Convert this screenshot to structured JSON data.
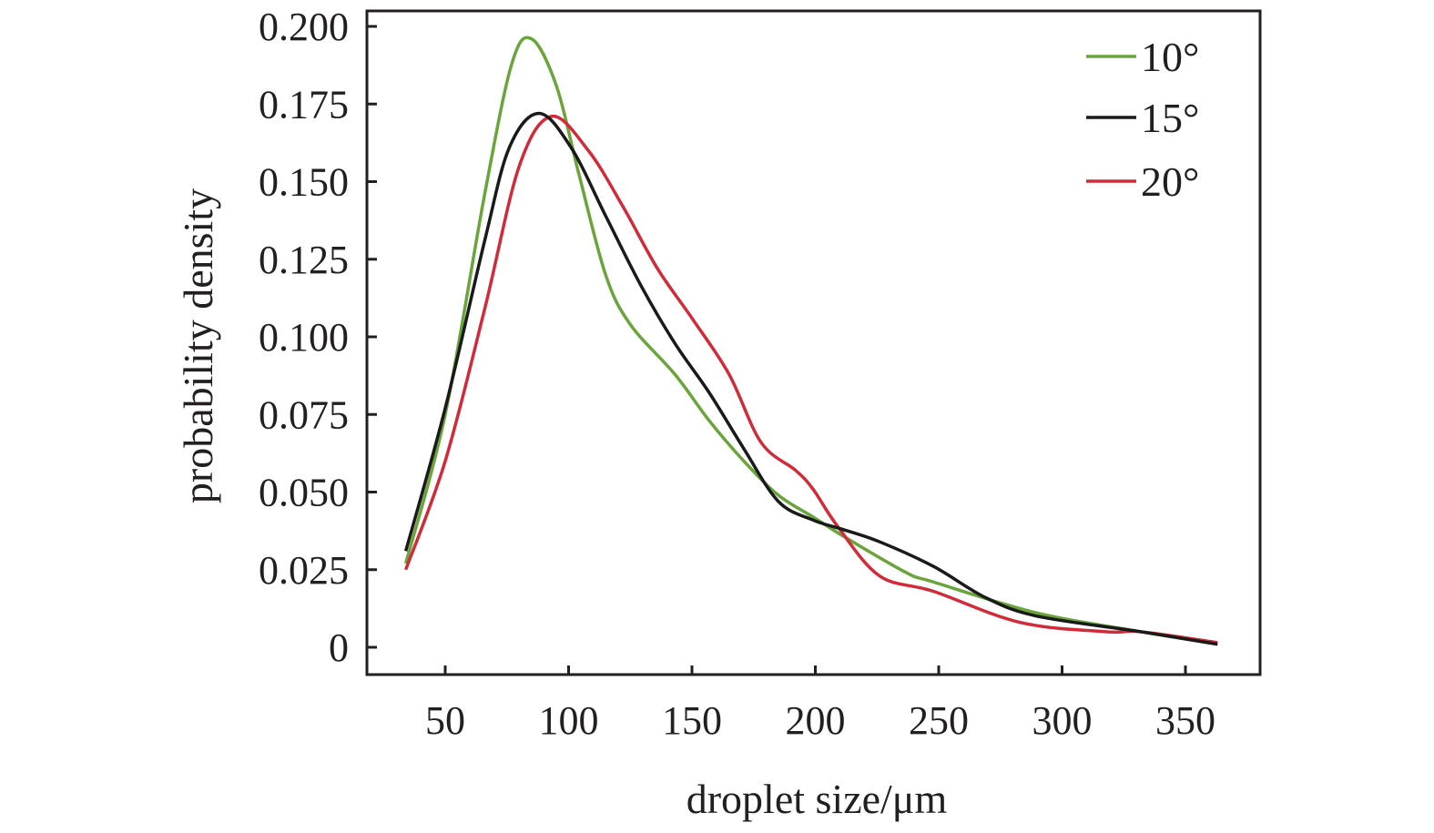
{
  "chart_data": {
    "type": "line",
    "title": "",
    "xlabel": "droplet size/μm",
    "ylabel": "probability density",
    "xlim": [
      20,
      380
    ],
    "ylim": [
      -0.009,
      0.205
    ],
    "xticks": [
      50,
      100,
      150,
      200,
      250,
      300,
      350
    ],
    "xtick_labels": [
      "50",
      "100",
      "150",
      "200",
      "250",
      "300",
      "350"
    ],
    "yticks": [
      0,
      0.025,
      0.05,
      0.075,
      0.1,
      0.125,
      0.15,
      0.175,
      0.2
    ],
    "ytick_labels": [
      "0",
      "0.025",
      "0.050",
      "0.075",
      "0.100",
      "0.125",
      "0.150",
      "0.175",
      "0.200"
    ],
    "grid": false,
    "legend_position": "top-right",
    "series": [
      {
        "name": "10°",
        "color": "#6aa53b",
        "x": [
          34,
          50,
          66,
          77,
          85,
          95,
          104,
          115,
          125,
          143,
          157,
          171,
          185,
          199,
          213,
          237,
          248,
          290,
          332,
          363
        ],
        "y": [
          0.027,
          0.075,
          0.146,
          0.188,
          0.196,
          0.181,
          0.153,
          0.12,
          0.104,
          0.088,
          0.073,
          0.06,
          0.049,
          0.042,
          0.035,
          0.024,
          0.021,
          0.011,
          0.005,
          0.001
        ]
      },
      {
        "name": "15°",
        "color": "#1a1a1a",
        "x": [
          34,
          50,
          66,
          76,
          88,
          101,
          115,
          129,
          143,
          157,
          171,
          185,
          199,
          211,
          226,
          248,
          269,
          290,
          332,
          363
        ],
        "y": [
          0.031,
          0.077,
          0.131,
          0.161,
          0.172,
          0.161,
          0.139,
          0.117,
          0.098,
          0.082,
          0.064,
          0.047,
          0.041,
          0.038,
          0.034,
          0.026,
          0.016,
          0.01,
          0.005,
          0.001
        ]
      },
      {
        "name": "20°",
        "color": "#d12b3a",
        "x": [
          34,
          50,
          66,
          80,
          93,
          108,
          122,
          136,
          150,
          165,
          178,
          192,
          199,
          209,
          226,
          248,
          283,
          318,
          332,
          363
        ],
        "y": [
          0.025,
          0.06,
          0.109,
          0.155,
          0.171,
          0.16,
          0.142,
          0.122,
          0.106,
          0.088,
          0.066,
          0.057,
          0.051,
          0.039,
          0.023,
          0.018,
          0.008,
          0.005,
          0.005,
          0.0015
        ]
      }
    ]
  }
}
